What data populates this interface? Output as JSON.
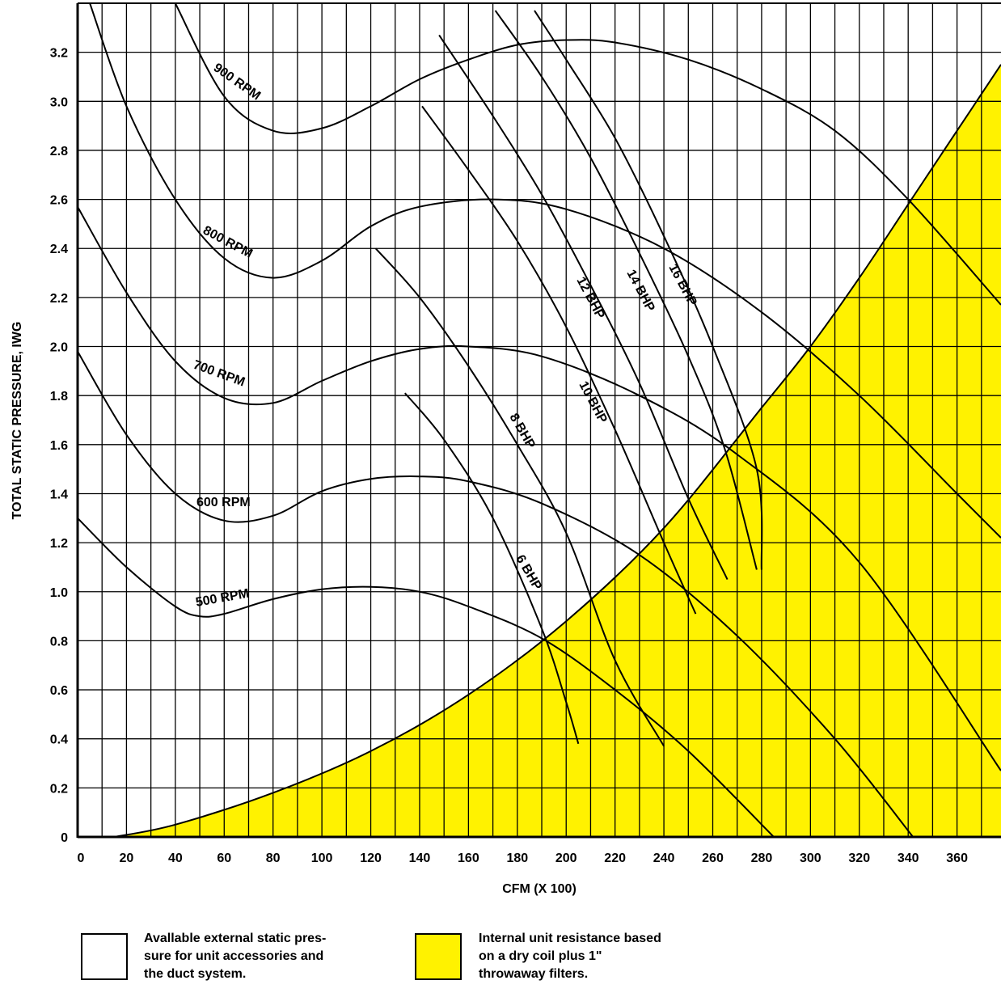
{
  "chart_data": {
    "type": "line",
    "title": "",
    "xlabel": "CFM (X 100)",
    "ylabel": "TOTAL STATIC PRESSURE, IWG",
    "xlim": [
      0,
      378
    ],
    "ylim": [
      0,
      3.4
    ],
    "grid": true,
    "x_ticks": [
      0,
      20,
      40,
      60,
      80,
      100,
      120,
      140,
      160,
      180,
      200,
      220,
      240,
      260,
      280,
      300,
      320,
      340,
      360
    ],
    "x_tick_labels": [
      "0",
      "20",
      "40",
      "60",
      "80",
      "100",
      "120",
      "140",
      "160",
      "180",
      "200",
      "220",
      "240",
      "260",
      "280",
      "300",
      "320",
      "340",
      "360"
    ],
    "y_ticks": [
      0,
      0.2,
      0.4,
      0.6,
      0.8,
      1.0,
      1.2,
      1.4,
      1.6,
      1.8,
      2.0,
      2.2,
      2.4,
      2.6,
      2.8,
      3.0,
      3.2
    ],
    "y_tick_labels": [
      "0",
      "0.2",
      "0.4",
      "0.6",
      "0.8",
      "1.0",
      "1.2",
      "1.4",
      "1.6",
      "1.8",
      "2.0",
      "2.2",
      "2.4",
      "2.6",
      "2.8",
      "3.0",
      "3.2"
    ],
    "resistance_curve": {
      "color": "#FFF200",
      "x": [
        15,
        40,
        80,
        120,
        160,
        200,
        240,
        280,
        300,
        320,
        340,
        360,
        378
      ],
      "y": [
        0,
        0.05,
        0.18,
        0.35,
        0.58,
        0.88,
        1.26,
        1.75,
        2.0,
        2.28,
        2.58,
        2.88,
        3.15
      ]
    },
    "rpm_series": [
      {
        "name": "500 RPM",
        "x": [
          0,
          20,
          40,
          50,
          60,
          80,
          100,
          120,
          140,
          160,
          190,
          220,
          250,
          285
        ],
        "y": [
          1.3,
          1.1,
          0.94,
          0.9,
          0.91,
          0.97,
          1.01,
          1.02,
          1.0,
          0.94,
          0.81,
          0.6,
          0.35,
          0.0
        ]
      },
      {
        "name": "600 RPM",
        "x": [
          0,
          20,
          40,
          60,
          80,
          100,
          120,
          140,
          160,
          190,
          230,
          270,
          310,
          342
        ],
        "y": [
          1.98,
          1.64,
          1.4,
          1.29,
          1.31,
          1.41,
          1.46,
          1.47,
          1.45,
          1.36,
          1.15,
          0.82,
          0.4,
          0.0
        ]
      },
      {
        "name": "700 RPM",
        "x": [
          0,
          20,
          40,
          60,
          80,
          100,
          120,
          140,
          160,
          190,
          230,
          270,
          320,
          378
        ],
        "y": [
          2.57,
          2.22,
          1.94,
          1.79,
          1.77,
          1.86,
          1.94,
          1.99,
          2.0,
          1.96,
          1.8,
          1.56,
          1.12,
          0.27
        ]
      },
      {
        "name": "800 RPM",
        "x": [
          5,
          20,
          40,
          60,
          80,
          100,
          120,
          140,
          170,
          200,
          240,
          280,
          320,
          360,
          378
        ],
        "y": [
          3.4,
          2.98,
          2.6,
          2.36,
          2.28,
          2.35,
          2.49,
          2.57,
          2.6,
          2.56,
          2.4,
          2.14,
          1.8,
          1.4,
          1.22
        ]
      },
      {
        "name": "900 RPM",
        "x": [
          40,
          60,
          80,
          100,
          120,
          140,
          160,
          180,
          200,
          220,
          250,
          280,
          310,
          340,
          378
        ],
        "y": [
          3.4,
          3.02,
          2.88,
          2.89,
          2.98,
          3.09,
          3.17,
          3.23,
          3.25,
          3.24,
          3.17,
          3.05,
          2.88,
          2.6,
          2.17
        ]
      }
    ],
    "bhp_series": [
      {
        "name": "6 BHP",
        "x": [
          134,
          150,
          170,
          190,
          200,
          205
        ],
        "y": [
          1.81,
          1.62,
          1.3,
          0.85,
          0.55,
          0.38
        ]
      },
      {
        "name": "8 BHP",
        "x": [
          122,
          140,
          160,
          180,
          200,
          220,
          240
        ],
        "y": [
          2.4,
          2.2,
          1.92,
          1.6,
          1.24,
          0.72,
          0.37
        ]
      },
      {
        "name": "10 BHP",
        "x": [
          141,
          160,
          180,
          200,
          220,
          240,
          253
        ],
        "y": [
          2.98,
          2.72,
          2.43,
          2.08,
          1.66,
          1.2,
          0.91
        ]
      },
      {
        "name": "12 BHP",
        "x": [
          148,
          170,
          190,
          210,
          230,
          250,
          266
        ],
        "y": [
          3.27,
          2.94,
          2.62,
          2.25,
          1.85,
          1.38,
          1.05
        ]
      },
      {
        "name": "14 BHP",
        "x": [
          171,
          190,
          210,
          230,
          250,
          265,
          278
        ],
        "y": [
          3.37,
          3.1,
          2.77,
          2.38,
          1.96,
          1.58,
          1.09
        ]
      },
      {
        "name": "16 BHP",
        "x": [
          187,
          200,
          220,
          240,
          260,
          278,
          280
        ],
        "y": [
          3.37,
          3.17,
          2.85,
          2.45,
          2.0,
          1.5,
          1.09
        ]
      }
    ],
    "labels": {
      "rpm": [
        "500 RPM",
        "600 RPM",
        "700 RPM",
        "800 RPM",
        "900 RPM"
      ],
      "bhp": [
        "6 BHP",
        "8 BHP",
        "10 BHP",
        "12 BHP",
        "14 BHP",
        "16 BHP"
      ]
    }
  },
  "legend": {
    "white_text": [
      "Avallable external static pres-",
      "sure for unit accessories and",
      "the duct system."
    ],
    "yellow_text": [
      "Internal unit resistance based",
      "on a dry coil plus 1\"",
      "throwaway filters."
    ]
  }
}
